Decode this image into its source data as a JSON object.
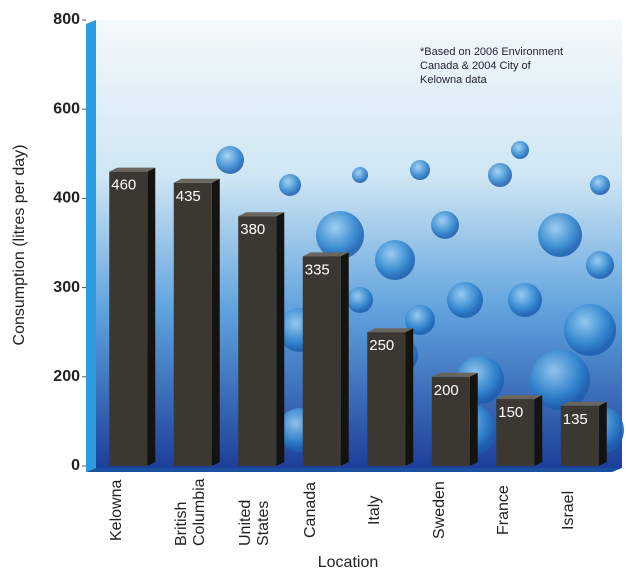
{
  "chart_data": {
    "type": "bar",
    "y_label": "Consumption (litres per day)",
    "x_label": "Location",
    "annotation": [
      "*Based on 2006 Environment",
      "Canada & 2004 City of",
      "Kelowna data"
    ],
    "categories": [
      "Kelowna",
      "British Columbia",
      "United States",
      "Canada",
      "Italy",
      "Sweden",
      "France",
      "Israel"
    ],
    "values": [
      460,
      435,
      380,
      335,
      250,
      200,
      150,
      135
    ],
    "color": "#3b3832",
    "ylim": [
      0,
      800
    ],
    "yticks": [
      0,
      200,
      300,
      400,
      600,
      800
    ]
  }
}
